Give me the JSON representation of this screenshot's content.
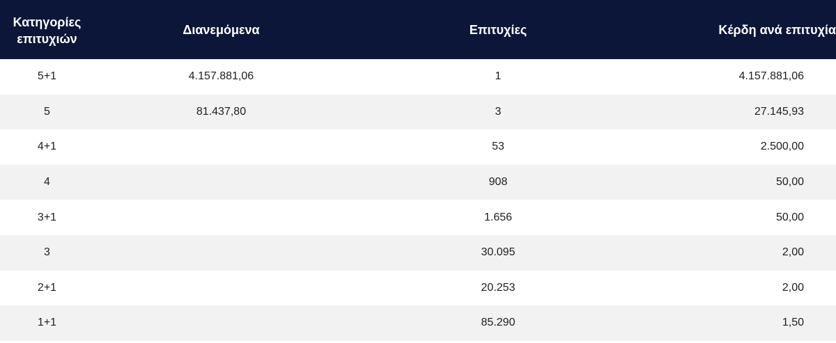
{
  "table": {
    "headers": {
      "category_line1": "Κατηγορίες",
      "category_line2": "επιτυχιών",
      "distributed": "Διανεμόμενα",
      "winners": "Επιτυχίες",
      "prize_per_winner": "Κέρδη ανά επιτυχία"
    },
    "rows": [
      {
        "category": "5+1",
        "distributed": "4.157.881,06",
        "winners": "1",
        "prize": "4.157.881,06"
      },
      {
        "category": "5",
        "distributed": "81.437,80",
        "winners": "3",
        "prize": "27.145,93"
      },
      {
        "category": "4+1",
        "distributed": "",
        "winners": "53",
        "prize": "2.500,00"
      },
      {
        "category": "4",
        "distributed": "",
        "winners": "908",
        "prize": "50,00"
      },
      {
        "category": "3+1",
        "distributed": "",
        "winners": "1.656",
        "prize": "50,00"
      },
      {
        "category": "3",
        "distributed": "",
        "winners": "30.095",
        "prize": "2,00"
      },
      {
        "category": "2+1",
        "distributed": "",
        "winners": "20.253",
        "prize": "2,00"
      },
      {
        "category": "1+1",
        "distributed": "",
        "winners": "85.290",
        "prize": "1,50"
      }
    ]
  },
  "colors": {
    "header_bg": "#0c1638",
    "header_text": "#ffffff",
    "row_alt_bg": "#f2f2f2"
  }
}
